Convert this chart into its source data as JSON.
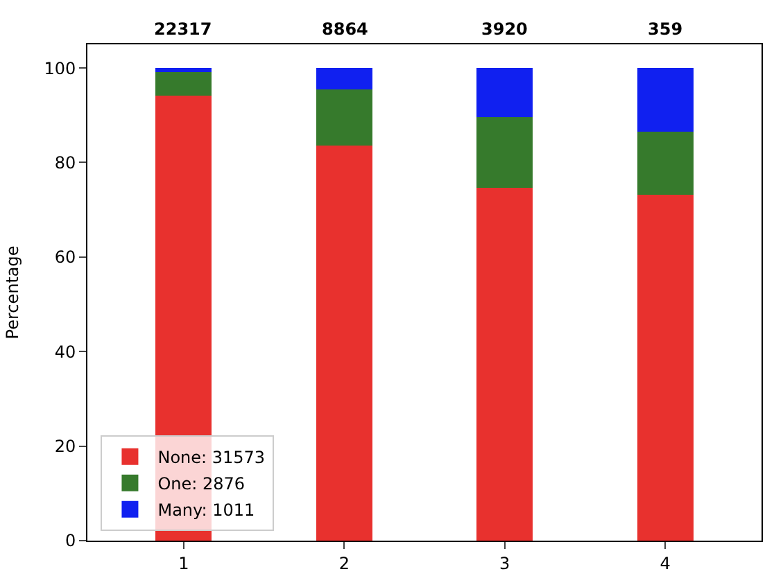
{
  "chart_data": {
    "type": "bar",
    "stacked": true,
    "ylabel": "Percentage",
    "categories": [
      "1",
      "2",
      "3",
      "4"
    ],
    "series": [
      {
        "name": "None: 31573",
        "color": "#e8312e",
        "values": [
          94.2,
          83.6,
          74.6,
          73.2
        ]
      },
      {
        "name": "One: 2876",
        "color": "#367a2c",
        "values": [
          5.0,
          11.9,
          15.0,
          13.3
        ]
      },
      {
        "name": "Many: 1011",
        "color": "#1020f0",
        "values": [
          0.8,
          4.5,
          10.4,
          13.5
        ]
      }
    ],
    "annotations": [
      "22317",
      "8864",
      "3920",
      "359"
    ],
    "ylim": [
      0,
      105
    ],
    "yticks": [
      0,
      20,
      40,
      60,
      80,
      100
    ],
    "legend": "bottom left"
  }
}
